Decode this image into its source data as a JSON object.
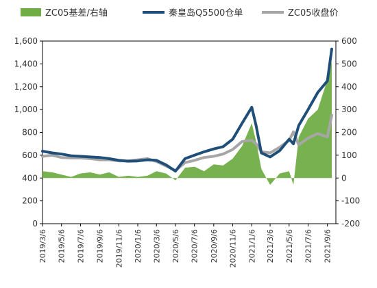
{
  "chart_data": {
    "type": "line",
    "title": "",
    "legend_position": "top",
    "grid": false,
    "left_axis": {
      "min": 0,
      "max": 1600,
      "ticks": [
        "0",
        "200",
        "400",
        "600",
        "800",
        "1,000",
        "1,200",
        "1,400",
        "1,600"
      ]
    },
    "right_axis": {
      "min": -200,
      "max": 600,
      "ticks": [
        "-200",
        "-100",
        "0",
        "100",
        "200",
        "300",
        "400",
        "500",
        "600"
      ]
    },
    "x_ticks": [
      "2019/3/6",
      "2019/5/6",
      "2019/7/6",
      "2019/9/6",
      "2019/11/6",
      "2020/1/6",
      "2020/3/6",
      "2020/5/6",
      "2020/7/6",
      "2020/9/6",
      "2020/11/6",
      "2021/1/6",
      "2021/3/6",
      "2021/5/6",
      "2021/7/6",
      "2021/9/6"
    ],
    "dates": [
      "2019/3/6",
      "2019/4/6",
      "2019/5/6",
      "2019/6/6",
      "2019/7/6",
      "2019/8/6",
      "2019/9/6",
      "2019/10/6",
      "2019/11/6",
      "2019/12/6",
      "2020/1/6",
      "2020/2/6",
      "2020/3/6",
      "2020/4/6",
      "2020/5/6",
      "2020/6/6",
      "2020/7/6",
      "2020/8/6",
      "2020/9/6",
      "2020/10/6",
      "2020/11/6",
      "2020/12/6",
      "2021/1/6",
      "2021/1/20",
      "2021/2/6",
      "2021/3/6",
      "2021/4/6",
      "2021/5/6",
      "2021/5/20",
      "2021/6/6",
      "2021/7/6",
      "2021/8/6",
      "2021/9/6",
      "2021/9/20"
    ],
    "series": [
      {
        "name": "ZC05基差/右轴",
        "type": "area",
        "axis": "right",
        "color": "#70ad47",
        "values": [
          30,
          25,
          15,
          5,
          20,
          25,
          15,
          25,
          5,
          10,
          5,
          10,
          30,
          20,
          -10,
          45,
          50,
          30,
          60,
          55,
          85,
          140,
          240,
          160,
          40,
          -30,
          20,
          30,
          -30,
          180,
          260,
          300,
          430,
          510
        ]
      },
      {
        "name": "秦皇岛Q5500仓单",
        "type": "line",
        "axis": "left",
        "color": "#1f4e79",
        "values": [
          635,
          620,
          610,
          595,
          590,
          585,
          580,
          570,
          555,
          548,
          550,
          560,
          555,
          515,
          460,
          570,
          600,
          630,
          655,
          675,
          740,
          880,
          1020,
          860,
          620,
          585,
          640,
          740,
          700,
          860,
          1000,
          1150,
          1250,
          1530
        ]
      },
      {
        "name": "ZC05收盘价",
        "type": "line",
        "axis": "left",
        "color": "#a6a6a6",
        "values": [
          590,
          600,
          580,
          575,
          575,
          570,
          560,
          560,
          550,
          550,
          560,
          570,
          545,
          505,
          465,
          535,
          555,
          580,
          590,
          610,
          650,
          720,
          730,
          700,
          630,
          620,
          670,
          730,
          805,
          690,
          750,
          790,
          760,
          950
        ]
      }
    ]
  }
}
